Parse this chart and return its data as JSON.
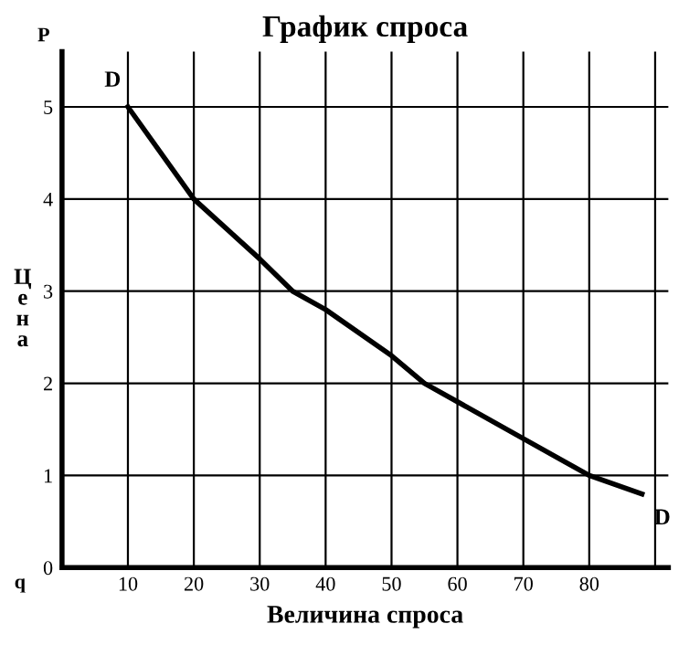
{
  "chart_data": {
    "type": "line",
    "title": "График спроса",
    "xlabel": "Величина спроса",
    "ylabel": "Цена",
    "x": [
      10,
      20,
      30,
      35,
      40,
      50,
      55,
      60,
      70,
      80,
      88
    ],
    "values": [
      5,
      4,
      3.35,
      3,
      2.8,
      2.3,
      2,
      1.8,
      1.4,
      1,
      0.8
    ],
    "color": "#000000",
    "marker": "none",
    "line_style": "solid",
    "grid": true,
    "legend": false,
    "xlim": [
      0,
      92
    ],
    "ylim": [
      0,
      5.6
    ],
    "xticks": [
      10,
      20,
      30,
      40,
      50,
      60,
      70,
      80,
      {
        "value": 90,
        "label": null
      }
    ],
    "yticks": [
      0,
      1,
      2,
      3,
      4,
      5
    ],
    "annotations": [
      {
        "text": "D",
        "x": 10,
        "y": 5
      },
      {
        "text": "D",
        "x": 88,
        "y": 0.8
      },
      "P",
      "q"
    ]
  }
}
